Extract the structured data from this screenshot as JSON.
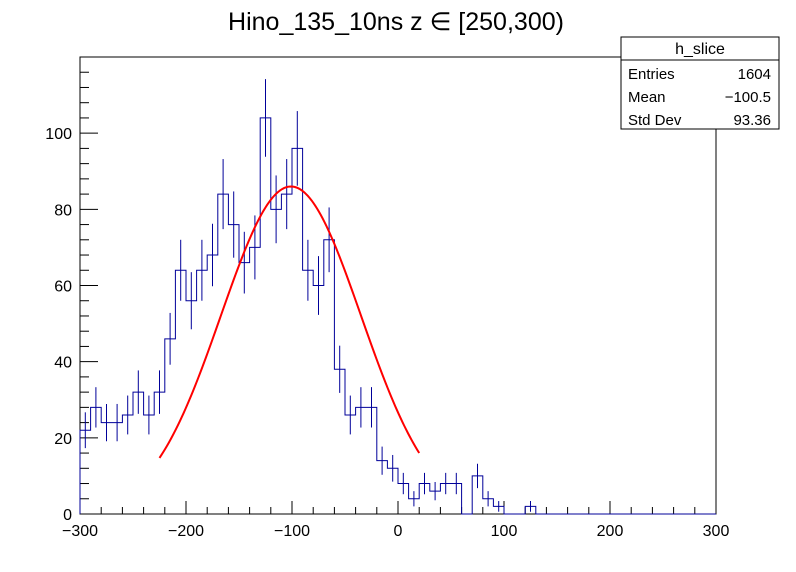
{
  "chart_data": {
    "type": "histogram",
    "title": "Hino_135_10ns z  ∈ [250,300)",
    "xlabel": "",
    "ylabel": "",
    "xlim": [
      -300,
      300
    ],
    "ylim": [
      0,
      120
    ],
    "grid": false,
    "bin_width": 10,
    "x_ticks": [
      -300,
      -200,
      -100,
      0,
      100,
      200,
      300
    ],
    "x_tick_labels": [
      "−300",
      "−200",
      "−100",
      "0",
      "100",
      "200",
      "300"
    ],
    "y_ticks": [
      0,
      20,
      40,
      60,
      80,
      100
    ],
    "y_tick_labels": [
      "0",
      "20",
      "40",
      "60",
      "80",
      "100"
    ],
    "series": [
      {
        "name": "h_slice",
        "bin_low_edges": [
          -300,
          -290,
          -280,
          -270,
          -260,
          -250,
          -240,
          -230,
          -220,
          -210,
          -200,
          -190,
          -180,
          -170,
          -160,
          -150,
          -140,
          -130,
          -120,
          -110,
          -100,
          -90,
          -80,
          -70,
          -60,
          -50,
          -40,
          -30,
          -20,
          -10,
          0,
          10,
          20,
          30,
          40,
          50,
          60,
          70,
          80,
          90,
          100,
          110,
          120,
          130,
          140,
          150,
          160,
          170,
          180,
          190,
          200,
          210,
          220,
          230,
          240,
          250,
          260,
          270,
          280,
          290
        ],
        "values": [
          22,
          28,
          24,
          24,
          26,
          32,
          26,
          32,
          46,
          64,
          56,
          64,
          68,
          84,
          76,
          66,
          70,
          104,
          80,
          84,
          96,
          64,
          60,
          72,
          38,
          26,
          28,
          28,
          14,
          12,
          8,
          4,
          8,
          6,
          8,
          8,
          0,
          10,
          4,
          2,
          0,
          0,
          2,
          0,
          0,
          0,
          0,
          0,
          0,
          0,
          0,
          0,
          0,
          0,
          0,
          0,
          0,
          0,
          0,
          0
        ],
        "errors": [
          4.7,
          5.3,
          4.9,
          4.9,
          5.1,
          5.7,
          5.1,
          5.7,
          6.8,
          8.0,
          7.5,
          8.0,
          8.2,
          9.2,
          8.7,
          8.1,
          8.4,
          10.2,
          8.9,
          9.2,
          9.8,
          8.0,
          7.7,
          8.5,
          6.2,
          5.1,
          5.3,
          5.3,
          3.7,
          3.5,
          2.8,
          2.0,
          2.8,
          2.4,
          2.8,
          2.8,
          0,
          3.2,
          2.0,
          1.4,
          0,
          0,
          1.4,
          0,
          0,
          0,
          0,
          0,
          0,
          0,
          0,
          0,
          0,
          0,
          0,
          0,
          0,
          0,
          0,
          0
        ],
        "color": "#000099"
      },
      {
        "name": "gaussian fit",
        "type": "line",
        "function": "gaussian",
        "amplitude": 86,
        "mean": -101,
        "sigma": 66,
        "x_range": [
          -225,
          20
        ],
        "color": "#ff0000"
      }
    ],
    "stats_box": {
      "title": "h_slice",
      "rows": [
        {
          "label": "Entries",
          "value": "1604"
        },
        {
          "label": "Mean",
          "value": "−100.5"
        },
        {
          "label": "Std Dev",
          "value": "93.36"
        }
      ],
      "placement": "top-right"
    }
  }
}
